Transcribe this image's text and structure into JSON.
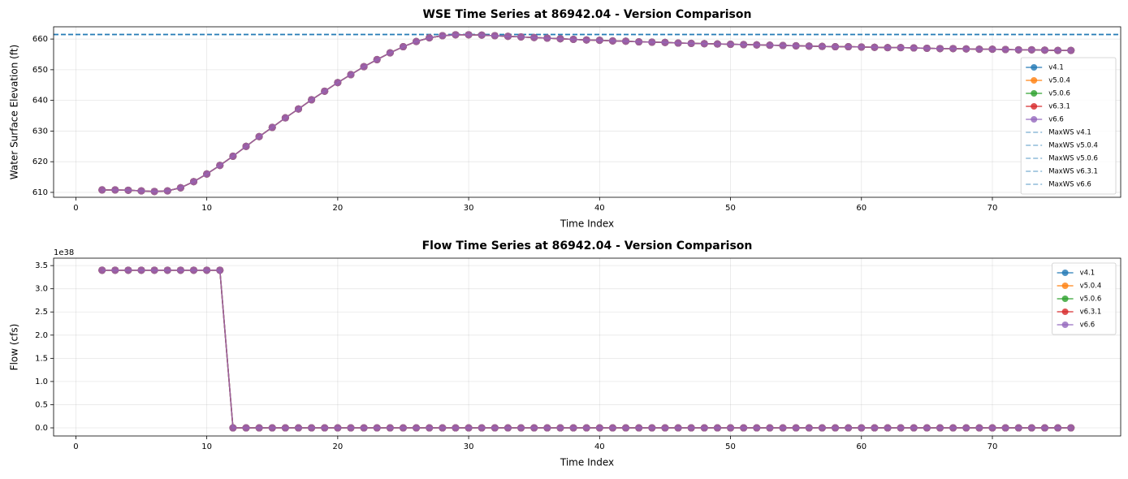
{
  "chart_data": [
    {
      "type": "line",
      "title": "WSE Time Series at 86942.04 - Version Comparison",
      "xlabel": "Time Index",
      "ylabel": "Water Surface Elevation (ft)",
      "x": [
        2,
        3,
        4,
        5,
        6,
        7,
        8,
        9,
        10,
        11,
        12,
        13,
        14,
        15,
        16,
        17,
        18,
        19,
        20,
        21,
        22,
        23,
        24,
        25,
        26,
        27,
        28,
        29,
        30,
        31,
        32,
        33,
        34,
        35,
        36,
        37,
        38,
        39,
        40,
        41,
        42,
        43,
        44,
        45,
        46,
        47,
        48,
        49,
        50,
        51,
        52,
        53,
        54,
        55,
        56,
        57,
        58,
        59,
        60,
        61,
        62,
        63,
        64,
        65,
        66,
        67,
        68,
        69,
        70,
        71,
        72,
        73,
        74,
        75,
        76
      ],
      "series": [
        {
          "name": "v4.1",
          "color": "#1f77b4",
          "values": [
            610.8,
            610.8,
            610.7,
            610.5,
            610.3,
            610.5,
            611.5,
            613.5,
            616.0,
            618.8,
            621.8,
            625.0,
            628.2,
            631.2,
            634.3,
            637.2,
            640.2,
            643.0,
            645.8,
            648.4,
            651.0,
            653.3,
            655.5,
            657.5,
            659.2,
            660.4,
            661.1,
            661.4,
            661.4,
            661.3,
            661.1,
            660.9,
            660.7,
            660.5,
            660.3,
            660.1,
            659.9,
            659.7,
            659.6,
            659.4,
            659.3,
            659.1,
            659.0,
            658.9,
            658.7,
            658.6,
            658.5,
            658.4,
            658.3,
            658.2,
            658.1,
            658.0,
            657.9,
            657.8,
            657.7,
            657.6,
            657.5,
            657.5,
            657.4,
            657.3,
            657.2,
            657.2,
            657.1,
            657.0,
            656.9,
            656.9,
            656.8,
            656.7,
            656.7,
            656.6,
            656.5,
            656.5,
            656.4,
            656.3,
            656.3
          ]
        },
        {
          "name": "v5.0.4",
          "color": "#ff7f0e",
          "values": [
            610.8,
            610.8,
            610.7,
            610.5,
            610.3,
            610.5,
            611.5,
            613.5,
            616.0,
            618.8,
            621.8,
            625.0,
            628.2,
            631.2,
            634.3,
            637.2,
            640.2,
            643.0,
            645.8,
            648.4,
            651.0,
            653.3,
            655.5,
            657.5,
            659.2,
            660.4,
            661.1,
            661.4,
            661.4,
            661.3,
            661.1,
            660.9,
            660.7,
            660.5,
            660.3,
            660.1,
            659.9,
            659.7,
            659.6,
            659.4,
            659.3,
            659.1,
            659.0,
            658.9,
            658.7,
            658.6,
            658.5,
            658.4,
            658.3,
            658.2,
            658.1,
            658.0,
            657.9,
            657.8,
            657.7,
            657.6,
            657.5,
            657.5,
            657.4,
            657.3,
            657.2,
            657.2,
            657.1,
            657.0,
            656.9,
            656.9,
            656.8,
            656.7,
            656.7,
            656.6,
            656.5,
            656.5,
            656.4,
            656.3,
            656.3
          ]
        },
        {
          "name": "v5.0.6",
          "color": "#2ca02c",
          "values": [
            610.8,
            610.8,
            610.7,
            610.5,
            610.3,
            610.5,
            611.5,
            613.5,
            616.0,
            618.8,
            621.8,
            625.0,
            628.2,
            631.2,
            634.3,
            637.2,
            640.2,
            643.0,
            645.8,
            648.4,
            651.0,
            653.3,
            655.5,
            657.5,
            659.2,
            660.4,
            661.1,
            661.4,
            661.4,
            661.3,
            661.1,
            660.9,
            660.7,
            660.5,
            660.3,
            660.1,
            659.9,
            659.7,
            659.6,
            659.4,
            659.3,
            659.1,
            659.0,
            658.9,
            658.7,
            658.6,
            658.5,
            658.4,
            658.3,
            658.2,
            658.1,
            658.0,
            657.9,
            657.8,
            657.7,
            657.6,
            657.5,
            657.5,
            657.4,
            657.3,
            657.2,
            657.2,
            657.1,
            657.0,
            656.9,
            656.9,
            656.8,
            656.7,
            656.7,
            656.6,
            656.5,
            656.5,
            656.4,
            656.3,
            656.3
          ]
        },
        {
          "name": "v6.3.1",
          "color": "#d62728",
          "values": [
            610.8,
            610.8,
            610.7,
            610.5,
            610.3,
            610.5,
            611.5,
            613.5,
            616.0,
            618.8,
            621.8,
            625.0,
            628.2,
            631.2,
            634.3,
            637.2,
            640.2,
            643.0,
            645.8,
            648.4,
            651.0,
            653.3,
            655.5,
            657.5,
            659.2,
            660.4,
            661.1,
            661.4,
            661.4,
            661.3,
            661.1,
            660.9,
            660.7,
            660.5,
            660.3,
            660.1,
            659.9,
            659.7,
            659.6,
            659.4,
            659.3,
            659.1,
            659.0,
            658.9,
            658.7,
            658.6,
            658.5,
            658.4,
            658.3,
            658.2,
            658.1,
            658.0,
            657.9,
            657.8,
            657.7,
            657.6,
            657.5,
            657.5,
            657.4,
            657.3,
            657.2,
            657.2,
            657.1,
            657.0,
            656.9,
            656.9,
            656.8,
            656.7,
            656.7,
            656.6,
            656.5,
            656.5,
            656.4,
            656.3,
            656.3
          ]
        },
        {
          "name": "v6.6",
          "color": "#9467bd",
          "values": [
            610.8,
            610.8,
            610.7,
            610.5,
            610.3,
            610.5,
            611.5,
            613.5,
            616.0,
            618.8,
            621.8,
            625.0,
            628.2,
            631.2,
            634.3,
            637.2,
            640.2,
            643.0,
            645.8,
            648.4,
            651.0,
            653.3,
            655.5,
            657.5,
            659.2,
            660.4,
            661.1,
            661.4,
            661.4,
            661.3,
            661.1,
            660.9,
            660.7,
            660.5,
            660.3,
            660.1,
            659.9,
            659.7,
            659.6,
            659.4,
            659.3,
            659.1,
            659.0,
            658.9,
            658.7,
            658.6,
            658.5,
            658.4,
            658.3,
            658.2,
            658.1,
            658.0,
            657.9,
            657.8,
            657.7,
            657.6,
            657.5,
            657.5,
            657.4,
            657.3,
            657.2,
            657.2,
            657.1,
            657.0,
            656.9,
            656.9,
            656.8,
            656.7,
            656.7,
            656.6,
            656.5,
            656.5,
            656.4,
            656.3,
            656.3
          ]
        }
      ],
      "reference_lines": [
        {
          "name": "MaxWS v4.1",
          "color": "#1f77b4",
          "value": 661.5
        },
        {
          "name": "MaxWS v5.0.4",
          "color": "#1f77b4",
          "value": 661.5
        },
        {
          "name": "MaxWS v5.0.6",
          "color": "#1f77b4",
          "value": 661.5
        },
        {
          "name": "MaxWS v6.3.1",
          "color": "#1f77b4",
          "value": 661.5
        },
        {
          "name": "MaxWS v6.6",
          "color": "#1f77b4",
          "value": 661.5
        }
      ],
      "xlim": [
        -1.7,
        79.8
      ],
      "xticks": [
        0,
        10,
        20,
        30,
        40,
        50,
        60,
        70
      ],
      "ylim": [
        608.4,
        664
      ],
      "yticks": [
        610,
        620,
        630,
        640,
        650,
        660
      ],
      "grid": true,
      "legend": "lower right"
    },
    {
      "type": "line",
      "title": "Flow Time Series at 86942.04 - Version Comparison",
      "xlabel": "Time Index",
      "ylabel": "Flow (cfs)",
      "y_offset_label": "1e38",
      "x": [
        2,
        3,
        4,
        5,
        6,
        7,
        8,
        9,
        10,
        11,
        12,
        13,
        14,
        15,
        16,
        17,
        18,
        19,
        20,
        21,
        22,
        23,
        24,
        25,
        26,
        27,
        28,
        29,
        30,
        31,
        32,
        33,
        34,
        35,
        36,
        37,
        38,
        39,
        40,
        41,
        42,
        43,
        44,
        45,
        46,
        47,
        48,
        49,
        50,
        51,
        52,
        53,
        54,
        55,
        56,
        57,
        58,
        59,
        60,
        61,
        62,
        63,
        64,
        65,
        66,
        67,
        68,
        69,
        70,
        71,
        72,
        73,
        74,
        75,
        76
      ],
      "series": [
        {
          "name": "v4.1",
          "color": "#1f77b4",
          "values": [
            3.4e+38,
            3.4e+38,
            3.4e+38,
            3.4e+38,
            3.4e+38,
            3.4e+38,
            3.4e+38,
            3.4e+38,
            3.4e+38,
            3.4e+38,
            0,
            0,
            0,
            0,
            0,
            0,
            0,
            0,
            0,
            0,
            0,
            0,
            0,
            0,
            0,
            0,
            0,
            0,
            0,
            0,
            0,
            0,
            0,
            0,
            0,
            0,
            0,
            0,
            0,
            0,
            0,
            0,
            0,
            0,
            0,
            0,
            0,
            0,
            0,
            0,
            0,
            0,
            0,
            0,
            0,
            0,
            0,
            0,
            0,
            0,
            0,
            0,
            0,
            0,
            0,
            0,
            0,
            0,
            0,
            0,
            0,
            0,
            0,
            0,
            0
          ]
        },
        {
          "name": "v5.0.4",
          "color": "#ff7f0e",
          "values": [
            3.4e+38,
            3.4e+38,
            3.4e+38,
            3.4e+38,
            3.4e+38,
            3.4e+38,
            3.4e+38,
            3.4e+38,
            3.4e+38,
            3.4e+38,
            0,
            0,
            0,
            0,
            0,
            0,
            0,
            0,
            0,
            0,
            0,
            0,
            0,
            0,
            0,
            0,
            0,
            0,
            0,
            0,
            0,
            0,
            0,
            0,
            0,
            0,
            0,
            0,
            0,
            0,
            0,
            0,
            0,
            0,
            0,
            0,
            0,
            0,
            0,
            0,
            0,
            0,
            0,
            0,
            0,
            0,
            0,
            0,
            0,
            0,
            0,
            0,
            0,
            0,
            0,
            0,
            0,
            0,
            0,
            0,
            0,
            0,
            0,
            0,
            0
          ]
        },
        {
          "name": "v5.0.6",
          "color": "#2ca02c",
          "values": [
            3.4e+38,
            3.4e+38,
            3.4e+38,
            3.4e+38,
            3.4e+38,
            3.4e+38,
            3.4e+38,
            3.4e+38,
            3.4e+38,
            3.4e+38,
            0,
            0,
            0,
            0,
            0,
            0,
            0,
            0,
            0,
            0,
            0,
            0,
            0,
            0,
            0,
            0,
            0,
            0,
            0,
            0,
            0,
            0,
            0,
            0,
            0,
            0,
            0,
            0,
            0,
            0,
            0,
            0,
            0,
            0,
            0,
            0,
            0,
            0,
            0,
            0,
            0,
            0,
            0,
            0,
            0,
            0,
            0,
            0,
            0,
            0,
            0,
            0,
            0,
            0,
            0,
            0,
            0,
            0,
            0,
            0,
            0,
            0,
            0,
            0,
            0
          ]
        },
        {
          "name": "v6.3.1",
          "color": "#d62728",
          "values": [
            3.4e+38,
            3.4e+38,
            3.4e+38,
            3.4e+38,
            3.4e+38,
            3.4e+38,
            3.4e+38,
            3.4e+38,
            3.4e+38,
            3.4e+38,
            0,
            0,
            0,
            0,
            0,
            0,
            0,
            0,
            0,
            0,
            0,
            0,
            0,
            0,
            0,
            0,
            0,
            0,
            0,
            0,
            0,
            0,
            0,
            0,
            0,
            0,
            0,
            0,
            0,
            0,
            0,
            0,
            0,
            0,
            0,
            0,
            0,
            0,
            0,
            0,
            0,
            0,
            0,
            0,
            0,
            0,
            0,
            0,
            0,
            0,
            0,
            0,
            0,
            0,
            0,
            0,
            0,
            0,
            0,
            0,
            0,
            0,
            0,
            0,
            0
          ]
        },
        {
          "name": "v6.6",
          "color": "#9467bd",
          "values": [
            3.4e+38,
            3.4e+38,
            3.4e+38,
            3.4e+38,
            3.4e+38,
            3.4e+38,
            3.4e+38,
            3.4e+38,
            3.4e+38,
            3.4e+38,
            0,
            0,
            0,
            0,
            0,
            0,
            0,
            0,
            0,
            0,
            0,
            0,
            0,
            0,
            0,
            0,
            0,
            0,
            0,
            0,
            0,
            0,
            0,
            0,
            0,
            0,
            0,
            0,
            0,
            0,
            0,
            0,
            0,
            0,
            0,
            0,
            0,
            0,
            0,
            0,
            0,
            0,
            0,
            0,
            0,
            0,
            0,
            0,
            0,
            0,
            0,
            0,
            0,
            0,
            0,
            0,
            0,
            0,
            0,
            0,
            0,
            0,
            0,
            0,
            0
          ]
        }
      ],
      "xlim": [
        -1.7,
        79.8
      ],
      "xticks": [
        0,
        10,
        20,
        30,
        40,
        50,
        60,
        70
      ],
      "ylim": [
        -1.75e+37,
        3.66e+38
      ],
      "yticks": [
        {
          "value": 0,
          "label": "0.0"
        },
        {
          "value": 5e+37,
          "label": "0.5"
        },
        {
          "value": 1e+38,
          "label": "1.0"
        },
        {
          "value": 1.5e+38,
          "label": "1.5"
        },
        {
          "value": 2e+38,
          "label": "2.0"
        },
        {
          "value": 2.5e+38,
          "label": "2.5"
        },
        {
          "value": 3e+38,
          "label": "3.0"
        },
        {
          "value": 3.5e+38,
          "label": "3.5"
        }
      ],
      "grid": true,
      "legend": "upper right"
    }
  ]
}
